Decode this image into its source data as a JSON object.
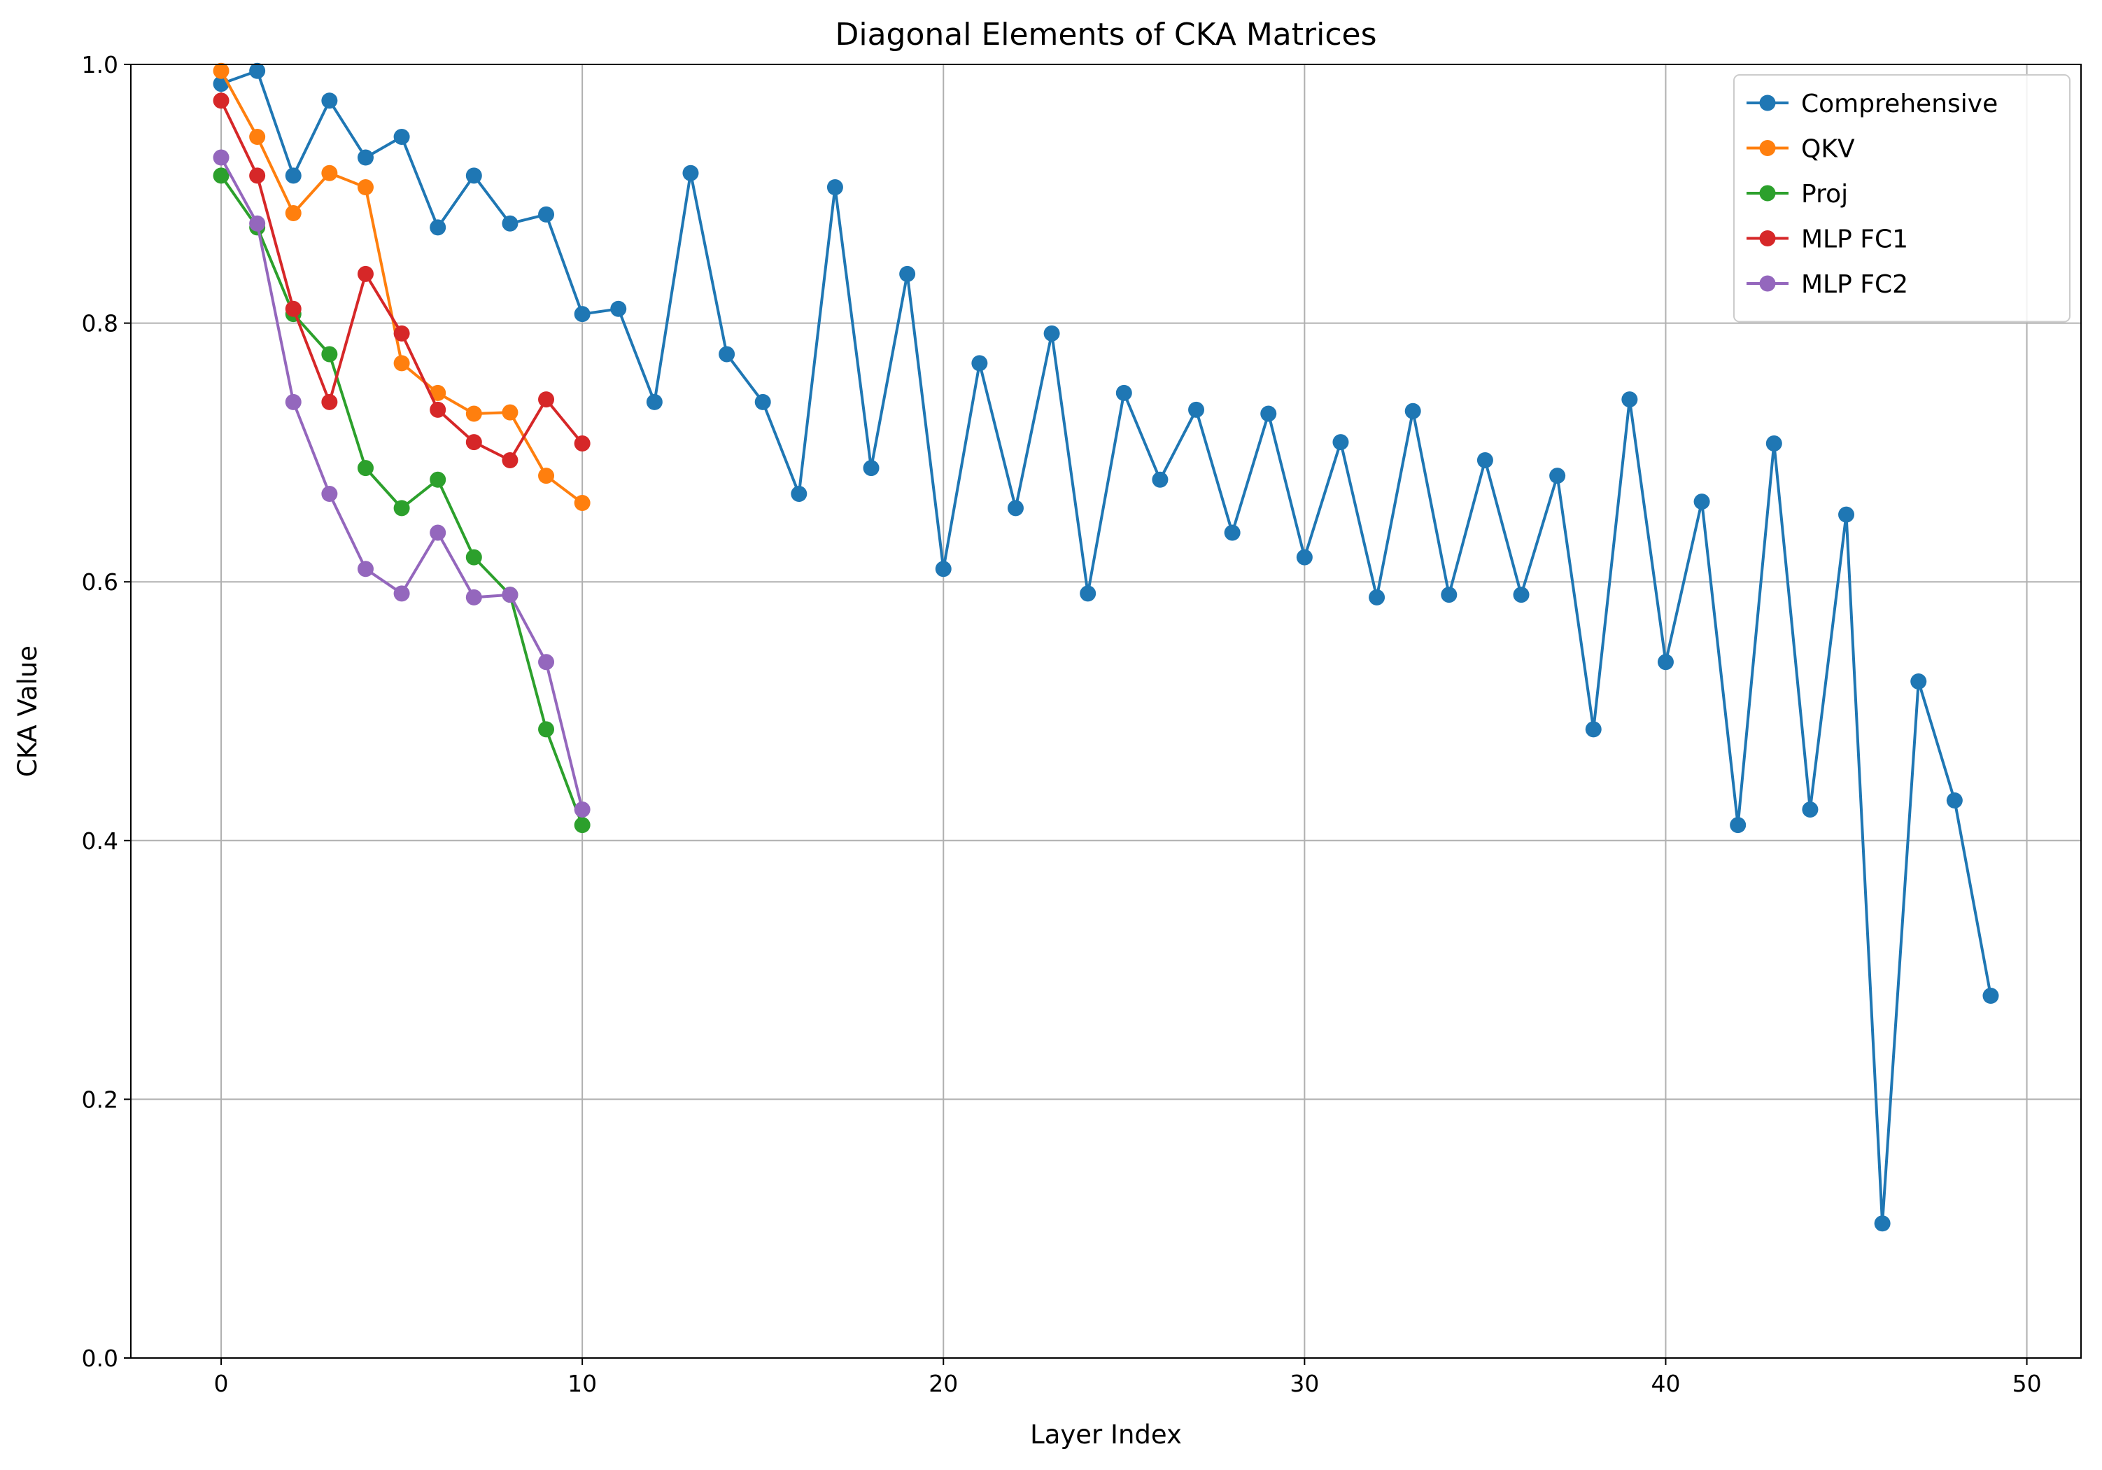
{
  "chart_data": {
    "type": "line",
    "title": "Diagonal Elements of CKA Matrices",
    "xlabel": "Layer Index",
    "ylabel": "CKA Value",
    "xlim": [
      -2.5,
      51.5
    ],
    "ylim": [
      0.0,
      1.0
    ],
    "xticks": [
      0,
      10,
      20,
      30,
      40,
      50
    ],
    "yticks": [
      0.0,
      0.2,
      0.4,
      0.6,
      0.8,
      1.0
    ],
    "xtick_labels": [
      "0",
      "10",
      "20",
      "30",
      "40",
      "50"
    ],
    "ytick_labels": [
      "0.0",
      "0.2",
      "0.4",
      "0.6",
      "0.8",
      "1.0"
    ],
    "grid": true,
    "legend_position": "top-right",
    "series": [
      {
        "name": "Comprehensive",
        "color": "#1f77b4",
        "x": [
          0,
          1,
          2,
          3,
          4,
          5,
          6,
          7,
          8,
          9,
          10,
          11,
          12,
          13,
          14,
          15,
          16,
          17,
          18,
          19,
          20,
          21,
          22,
          23,
          24,
          25,
          26,
          27,
          28,
          29,
          30,
          31,
          32,
          33,
          34,
          35,
          36,
          37,
          38,
          39,
          40,
          41,
          42,
          43,
          44,
          45,
          46,
          47,
          48,
          49
        ],
        "values": [
          0.985,
          0.995,
          0.914,
          0.972,
          0.928,
          0.944,
          0.874,
          0.914,
          0.877,
          0.884,
          0.807,
          0.811,
          0.739,
          0.916,
          0.776,
          0.739,
          0.668,
          0.905,
          0.688,
          0.838,
          0.61,
          0.769,
          0.657,
          0.792,
          0.591,
          0.746,
          0.679,
          0.733,
          0.638,
          0.73,
          0.619,
          0.708,
          0.588,
          0.732,
          0.59,
          0.694,
          0.59,
          0.682,
          0.486,
          0.741,
          0.538,
          0.662,
          0.412,
          0.707,
          0.424,
          0.652,
          0.104,
          0.523,
          0.431,
          0.28
        ]
      },
      {
        "name": "QKV",
        "color": "#ff7f0e",
        "x": [
          0,
          1,
          2,
          3,
          4,
          5,
          6,
          7,
          8,
          9,
          10
        ],
        "values": [
          0.995,
          0.944,
          0.885,
          0.916,
          0.905,
          0.769,
          0.746,
          0.73,
          0.731,
          0.682,
          0.661
        ]
      },
      {
        "name": "Proj",
        "color": "#2ca02c",
        "x": [
          0,
          1,
          2,
          3,
          4,
          5,
          6,
          7,
          8,
          9,
          10
        ],
        "values": [
          0.914,
          0.874,
          0.807,
          0.776,
          0.688,
          0.657,
          0.679,
          0.619,
          0.59,
          0.486,
          0.412
        ]
      },
      {
        "name": "MLP FC1",
        "color": "#d62728",
        "x": [
          0,
          1,
          2,
          3,
          4,
          5,
          6,
          7,
          8,
          9,
          10
        ],
        "values": [
          0.972,
          0.914,
          0.811,
          0.739,
          0.838,
          0.792,
          0.733,
          0.708,
          0.694,
          0.741,
          0.707
        ]
      },
      {
        "name": "MLP FC2",
        "color": "#9467bd",
        "x": [
          0,
          1,
          2,
          3,
          4,
          5,
          6,
          7,
          8,
          9,
          10
        ],
        "values": [
          0.928,
          0.877,
          0.739,
          0.668,
          0.61,
          0.591,
          0.638,
          0.588,
          0.59,
          0.538,
          0.424
        ]
      }
    ]
  }
}
